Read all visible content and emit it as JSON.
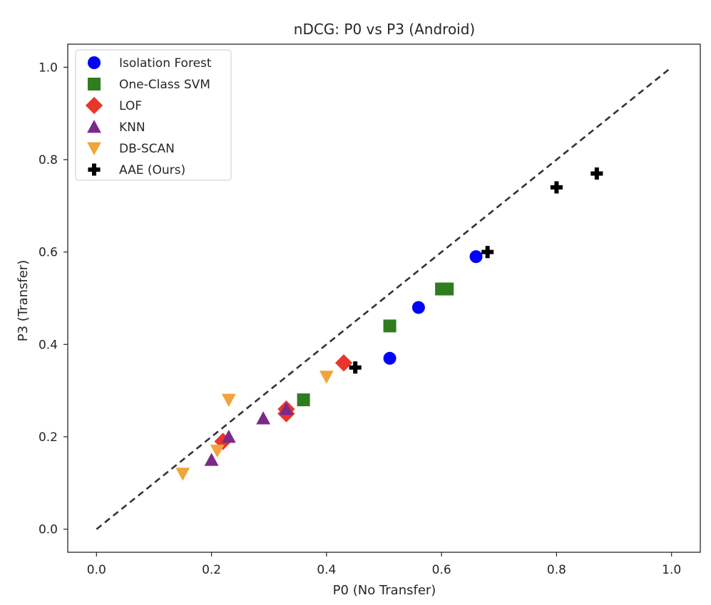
{
  "chart_data": {
    "type": "scatter",
    "title": "nDCG: P0 vs P3 (Android)",
    "xlabel": "P0 (No Transfer)",
    "ylabel": "P3 (Transfer)",
    "xlim": [
      -0.05,
      1.05
    ],
    "ylim": [
      -0.05,
      1.05
    ],
    "xticks": [
      0.0,
      0.2,
      0.4,
      0.6,
      0.8,
      1.0
    ],
    "yticks": [
      0.0,
      0.2,
      0.4,
      0.6,
      0.8,
      1.0
    ],
    "xtick_labels": [
      "0.0",
      "0.2",
      "0.4",
      "0.6",
      "0.8",
      "1.0"
    ],
    "ytick_labels": [
      "0.0",
      "0.2",
      "0.4",
      "0.6",
      "0.8",
      "1.0"
    ],
    "grid": false,
    "legend_position": "upper-left",
    "reference_line": {
      "style": "dashed",
      "color": "#333333",
      "x": [
        0.0,
        1.0
      ],
      "y": [
        0.0,
        1.0
      ]
    },
    "series": [
      {
        "name": "Isolation Forest",
        "marker": "circle",
        "color": "#0000ff",
        "points": [
          [
            0.51,
            0.37
          ],
          [
            0.56,
            0.48
          ],
          [
            0.66,
            0.59
          ]
        ]
      },
      {
        "name": "One-Class SVM",
        "marker": "square",
        "color": "#2e7d1e",
        "points": [
          [
            0.36,
            0.28
          ],
          [
            0.51,
            0.44
          ],
          [
            0.6,
            0.52
          ],
          [
            0.61,
            0.52
          ]
        ]
      },
      {
        "name": "LOF",
        "marker": "diamond",
        "color": "#e8372a",
        "points": [
          [
            0.22,
            0.19
          ],
          [
            0.33,
            0.26
          ],
          [
            0.33,
            0.25
          ],
          [
            0.43,
            0.36
          ]
        ]
      },
      {
        "name": "KNN",
        "marker": "triangle-up",
        "color": "#7b2a8a",
        "points": [
          [
            0.2,
            0.15
          ],
          [
            0.23,
            0.2
          ],
          [
            0.29,
            0.24
          ],
          [
            0.33,
            0.26
          ]
        ]
      },
      {
        "name": "DB-SCAN",
        "marker": "triangle-down",
        "color": "#f0a43a",
        "points": [
          [
            0.15,
            0.12
          ],
          [
            0.21,
            0.17
          ],
          [
            0.23,
            0.28
          ],
          [
            0.4,
            0.33
          ]
        ]
      },
      {
        "name": "AAE (Ours)",
        "marker": "plus",
        "color": "#000000",
        "points": [
          [
            0.45,
            0.35
          ],
          [
            0.68,
            0.6
          ],
          [
            0.8,
            0.74
          ],
          [
            0.87,
            0.77
          ]
        ]
      }
    ]
  }
}
